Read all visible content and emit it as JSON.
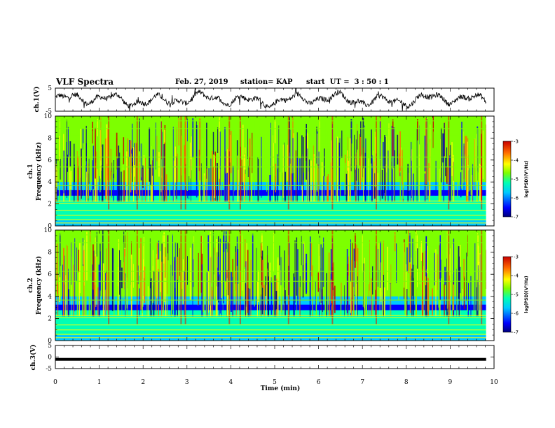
{
  "header": {
    "title": "VLF Spectra",
    "date": "Feb. 27, 2019",
    "station": "station= KAP",
    "start": "start  UT =  3 : 50 : 1"
  },
  "chart_data": [
    {
      "type": "line",
      "ylabel": "ch.1(V)",
      "ylim": [
        -5,
        5
      ],
      "yticks": [
        "5",
        "-5"
      ],
      "xlim": [
        0,
        10
      ],
      "description_free": true,
      "series": [
        {
          "values_min_max": [
            -4.5,
            4.8
          ]
        }
      ]
    },
    {
      "type": "heatmap",
      "ylabel": "ch.1\nFrequency (kHz)",
      "ylabel_lines": [
        "ch.1",
        "Frequency  (kHz)"
      ],
      "ylim": [
        0,
        10
      ],
      "yticks": [
        "0",
        "2",
        "4",
        "6",
        "8",
        "10"
      ],
      "xlim": [
        0,
        10
      ],
      "colorbar": {
        "label": "log(PSD)(V²/Hz)",
        "ticks": [
          "-3",
          "-4",
          "-5",
          "-6",
          "-7"
        ],
        "range": [
          -7,
          -3
        ]
      }
    },
    {
      "type": "heatmap",
      "ylabel_lines": [
        "ch.2",
        "Frequency  (kHz)"
      ],
      "ylim": [
        0,
        10
      ],
      "yticks": [
        "0",
        "2",
        "4",
        "6",
        "8",
        "10"
      ],
      "xlim": [
        0,
        10
      ],
      "colorbar": {
        "label": "log(PSD)(V²/Hz)",
        "ticks": [
          "-3",
          "-4",
          "-5",
          "-6",
          "-7"
        ],
        "range": [
          -7,
          -3
        ]
      }
    },
    {
      "type": "line",
      "ylabel": "ch.3(V)",
      "ylim": [
        -5,
        5
      ],
      "yticks": [
        "5",
        "0",
        "-5"
      ],
      "xlim": [
        0,
        10
      ],
      "series": [
        {
          "values_constant": -1.0
        }
      ]
    }
  ],
  "xaxis": {
    "label": "Time  (min)",
    "ticks": [
      "0",
      "1",
      "2",
      "3",
      "4",
      "5",
      "6",
      "7",
      "8",
      "9",
      "10"
    ]
  },
  "colors": {
    "trace": "#000000",
    "colormap": [
      "#00007a",
      "#0000ff",
      "#00c8ff",
      "#00ffb4",
      "#7dff00",
      "#ffff00",
      "#ff6a00",
      "#c80000"
    ]
  }
}
